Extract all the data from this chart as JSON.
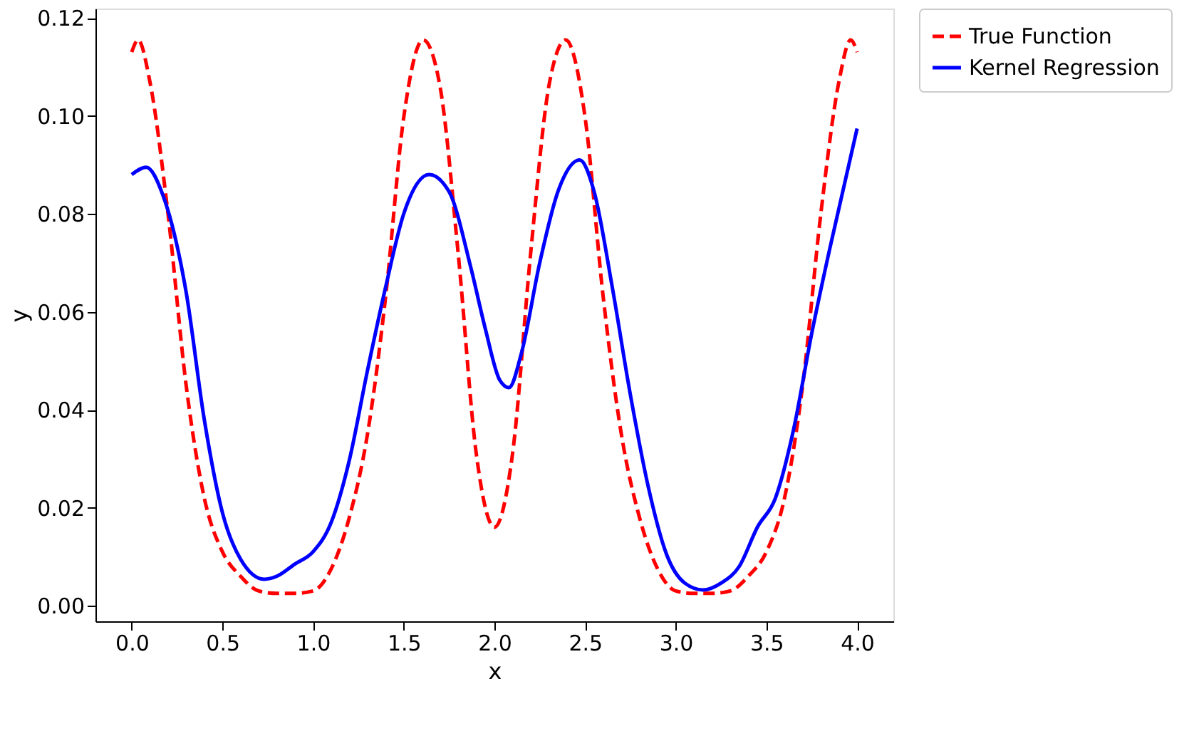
{
  "chart_data": {
    "type": "line",
    "xlabel": "x",
    "ylabel": "y",
    "xlim": [
      -0.2,
      4.2
    ],
    "ylim": [
      -0.0032,
      0.1219
    ],
    "xticks": [
      {
        "value": 0,
        "label": "0.0"
      },
      {
        "value": 0.5,
        "label": "0.5"
      },
      {
        "value": 1,
        "label": "1.0"
      },
      {
        "value": 1.5,
        "label": "1.5"
      },
      {
        "value": 2,
        "label": "2.0"
      },
      {
        "value": 2.5,
        "label": "2.5"
      },
      {
        "value": 3,
        "label": "3.0"
      },
      {
        "value": 3.5,
        "label": "3.5"
      },
      {
        "value": 4,
        "label": "4.0"
      }
    ],
    "yticks": [
      {
        "value": 0,
        "label": "0.00"
      },
      {
        "value": 0.02,
        "label": "0.02"
      },
      {
        "value": 0.04,
        "label": "0.04"
      },
      {
        "value": 0.06,
        "label": "0.06"
      },
      {
        "value": 0.08,
        "label": "0.08"
      },
      {
        "value": 0.1,
        "label": "0.10"
      },
      {
        "value": 0.12,
        "label": "0.12"
      }
    ],
    "grid": false,
    "legend": "right",
    "marker": "none",
    "series": [
      {
        "name": "True Function",
        "color": "#ff0000",
        "line_style": "dashed",
        "x": [
          0,
          0.035,
          0.1,
          0.2,
          0.3,
          0.4,
          0.5,
          0.6,
          0.7,
          0.8,
          0.9,
          1.0,
          1.1,
          1.2,
          1.3,
          1.4,
          1.5,
          1.607,
          1.7,
          1.8,
          1.9,
          2.0,
          2.1,
          2.2,
          2.3,
          2.393,
          2.5,
          2.6,
          2.7,
          2.8,
          2.9,
          3.0,
          3.1,
          3.2,
          3.3,
          3.4,
          3.5,
          3.6,
          3.7,
          3.8,
          3.9,
          3.965,
          4.0
        ],
        "values": [
          0.113,
          0.1155,
          0.107,
          0.08,
          0.045,
          0.022,
          0.011,
          0.006,
          0.003,
          0.0025,
          0.0025,
          0.003,
          0.0075,
          0.018,
          0.035,
          0.063,
          0.0997,
          0.1155,
          0.106,
          0.072,
          0.031,
          0.016,
          0.031,
          0.072,
          0.106,
          0.1155,
          0.0997,
          0.063,
          0.035,
          0.018,
          0.0075,
          0.003,
          0.0025,
          0.0025,
          0.003,
          0.006,
          0.011,
          0.022,
          0.045,
          0.08,
          0.107,
          0.1155,
          0.113
        ]
      },
      {
        "name": "Kernel Regression",
        "color": "#0000ff",
        "line_style": "solid",
        "x": [
          0,
          0.08,
          0.17,
          0.3,
          0.4,
          0.5,
          0.6,
          0.73,
          0.8,
          0.9,
          1.0,
          1.1,
          1.2,
          1.3,
          1.4,
          1.5,
          1.64,
          1.75,
          1.87,
          1.95,
          2.03,
          2.08,
          2.15,
          2.25,
          2.35,
          2.47,
          2.55,
          2.65,
          2.75,
          2.85,
          2.95,
          3.05,
          3.15,
          3.25,
          3.35,
          3.45,
          3.55,
          3.65,
          3.75,
          3.85,
          4.0
        ],
        "values": [
          0.088,
          0.0895,
          0.084,
          0.064,
          0.038,
          0.019,
          0.0095,
          0.0054,
          0.006,
          0.0085,
          0.011,
          0.017,
          0.0297,
          0.048,
          0.065,
          0.08,
          0.088,
          0.0845,
          0.069,
          0.0565,
          0.046,
          0.0445,
          0.0517,
          0.07,
          0.0845,
          0.091,
          0.0845,
          0.065,
          0.043,
          0.024,
          0.0104,
          0.0046,
          0.0032,
          0.0046,
          0.008,
          0.016,
          0.022,
          0.036,
          0.0556,
          0.073,
          0.0974
        ]
      }
    ]
  }
}
